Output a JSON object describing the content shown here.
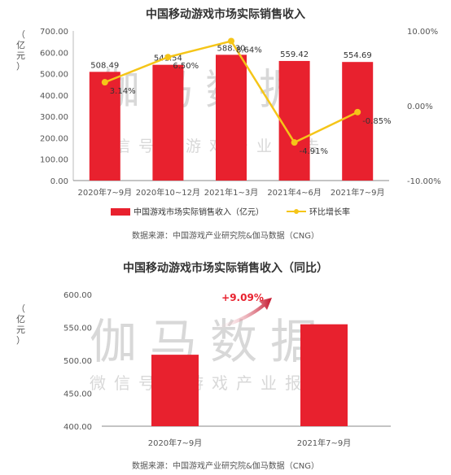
{
  "chart_data": [
    {
      "type": "bar",
      "title": "中国移动游戏市场实际销售收入",
      "ylabel": "亿元",
      "categories": [
        "2020年7~9月",
        "2020年10~12月",
        "2021年1~3月",
        "2021年4~6月",
        "2021年7~9月"
      ],
      "series": [
        {
          "name": "中国游戏市场实际销售收入（亿元）",
          "type": "bar",
          "values": [
            508.49,
            541.54,
            588.3,
            559.42,
            554.69
          ],
          "labels": [
            "508.49",
            "541.54",
            "588.30",
            "559.42",
            "554.69"
          ]
        },
        {
          "name": "环比增长率",
          "type": "line",
          "axis": "right",
          "values": [
            3.14,
            6.5,
            8.64,
            -4.91,
            -0.85
          ],
          "labels": [
            "3.14%",
            "6.50%",
            "8.64%",
            "-4.91%",
            "-0.85%"
          ]
        }
      ],
      "ylim": [
        0,
        700
      ],
      "yticks": [
        "0.00",
        "100.00",
        "200.00",
        "300.00",
        "400.00",
        "500.00",
        "600.00",
        "700.00"
      ],
      "y2lim": [
        -10,
        10
      ],
      "y2ticks": [
        "10.00%",
        "0.00%",
        "-10.00%"
      ],
      "source": "数据来源：中国游戏产业研究院&伽马数据（CNG）",
      "legend_position": "bottom",
      "grid": false
    },
    {
      "type": "bar",
      "title": "中国移动游戏市场实际销售收入（同比）",
      "ylabel": "亿元",
      "categories": [
        "2020年7~9月",
        "2021年7~9月"
      ],
      "values": [
        508.49,
        554.69
      ],
      "ylim": [
        400,
        600
      ],
      "yticks": [
        "400.00",
        "450.00",
        "500.00",
        "550.00",
        "600.00"
      ],
      "annotation": "+9.09%",
      "source": "数据来源：中国游戏产业研究院&伽马数据（CNG）",
      "grid": false
    }
  ],
  "watermark": {
    "logo": "伽马数据",
    "text": "微信号：游戏产业报告"
  },
  "colors": {
    "bar": "#e8212e",
    "line": "#f5c518",
    "annotation": "#e8212e",
    "axis_text": "#555555"
  }
}
